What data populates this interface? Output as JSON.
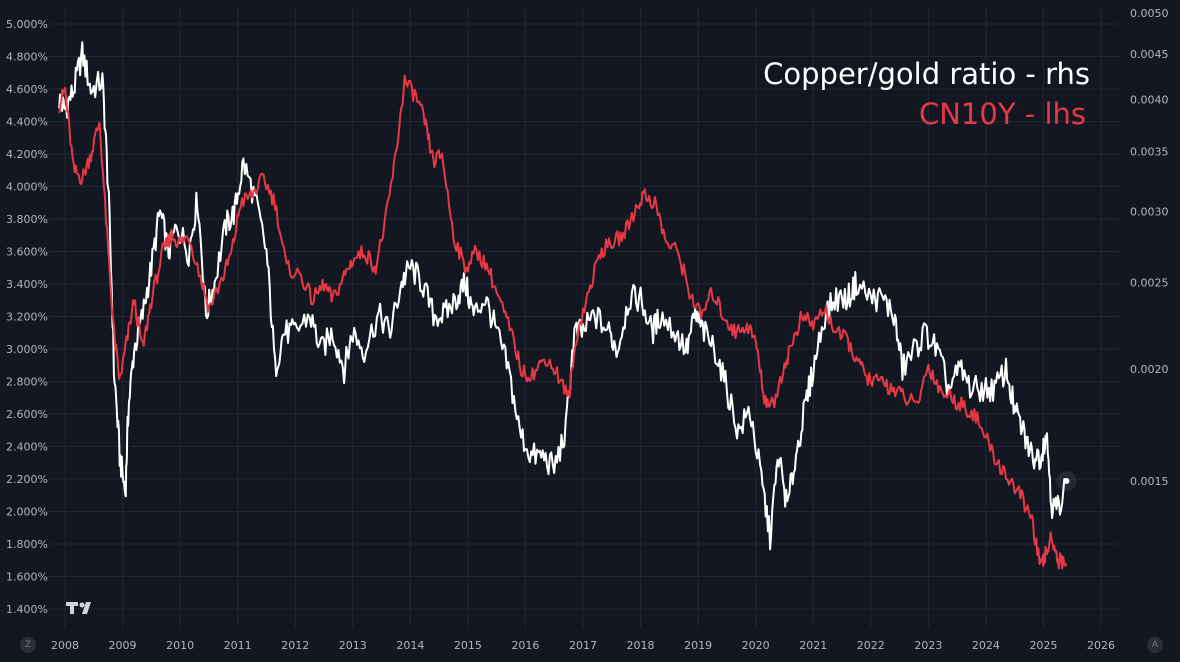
{
  "chart_data": {
    "type": "line",
    "title": "",
    "x_ticks": [
      "2008",
      "2009",
      "2010",
      "2011",
      "2012",
      "2013",
      "2014",
      "2015",
      "2016",
      "2017",
      "2018",
      "2019",
      "2020",
      "2021",
      "2022",
      "2023",
      "2024",
      "2025",
      "2026"
    ],
    "x_range": [
      2007.7,
      2026.3
    ],
    "left_axis": {
      "ticks": [
        "1.400%",
        "1.600%",
        "1.800%",
        "2.000%",
        "2.200%",
        "2.400%",
        "2.600%",
        "2.800%",
        "3.000%",
        "3.200%",
        "3.400%",
        "3.600%",
        "3.800%",
        "4.000%",
        "4.200%",
        "4.400%",
        "4.600%",
        "4.800%",
        "5.000%"
      ],
      "range": [
        1.4,
        5.0
      ],
      "unit": "%"
    },
    "right_axis": {
      "ticks": [
        "0.0015",
        "0.0020",
        "0.0025",
        "0.0030",
        "0.0035",
        "0.0040",
        "0.0045",
        "0.0050"
      ],
      "range": [
        0.001,
        0.005
      ],
      "scale": "log"
    },
    "grid": true,
    "legend_position": "top-right",
    "series": [
      {
        "name": "Copper/gold ratio - rhs",
        "axis": "right",
        "color": "#ffffff",
        "points": [
          [
            2007.9,
            0.004
          ],
          [
            2008.0,
            0.0039
          ],
          [
            2008.15,
            0.0041
          ],
          [
            2008.3,
            0.0045
          ],
          [
            2008.45,
            0.0041
          ],
          [
            2008.65,
            0.0042
          ],
          [
            2008.75,
            0.0032
          ],
          [
            2008.85,
            0.002
          ],
          [
            2008.95,
            0.0016
          ],
          [
            2009.05,
            0.00145
          ],
          [
            2009.1,
            0.0018
          ],
          [
            2009.2,
            0.0021
          ],
          [
            2009.35,
            0.0023
          ],
          [
            2009.5,
            0.0026
          ],
          [
            2009.65,
            0.003
          ],
          [
            2009.8,
            0.0027
          ],
          [
            2009.95,
            0.0029
          ],
          [
            2010.15,
            0.0027
          ],
          [
            2010.3,
            0.0031
          ],
          [
            2010.45,
            0.0023
          ],
          [
            2010.6,
            0.0025
          ],
          [
            2010.8,
            0.0029
          ],
          [
            2010.95,
            0.003
          ],
          [
            2011.1,
            0.0034
          ],
          [
            2011.3,
            0.0031
          ],
          [
            2011.5,
            0.0027
          ],
          [
            2011.65,
            0.002
          ],
          [
            2011.8,
            0.0022
          ],
          [
            2012.0,
            0.0022
          ],
          [
            2012.25,
            0.0023
          ],
          [
            2012.45,
            0.0021
          ],
          [
            2012.65,
            0.0022
          ],
          [
            2012.85,
            0.002
          ],
          [
            2013.0,
            0.0022
          ],
          [
            2013.2,
            0.0021
          ],
          [
            2013.45,
            0.0023
          ],
          [
            2013.65,
            0.0022
          ],
          [
            2013.85,
            0.0025
          ],
          [
            2014.0,
            0.0026
          ],
          [
            2014.2,
            0.0025
          ],
          [
            2014.4,
            0.0023
          ],
          [
            2014.6,
            0.0023
          ],
          [
            2014.8,
            0.0024
          ],
          [
            2014.95,
            0.0025
          ],
          [
            2015.1,
            0.0023
          ],
          [
            2015.3,
            0.0024
          ],
          [
            2015.5,
            0.0022
          ],
          [
            2015.7,
            0.002
          ],
          [
            2015.9,
            0.0017
          ],
          [
            2016.1,
            0.0016
          ],
          [
            2016.3,
            0.0016
          ],
          [
            2016.5,
            0.00155
          ],
          [
            2016.7,
            0.0017
          ],
          [
            2016.85,
            0.0022
          ],
          [
            2017.0,
            0.0022
          ],
          [
            2017.2,
            0.0023
          ],
          [
            2017.45,
            0.0022
          ],
          [
            2017.6,
            0.0021
          ],
          [
            2017.8,
            0.0024
          ],
          [
            2018.0,
            0.0024
          ],
          [
            2018.2,
            0.0022
          ],
          [
            2018.35,
            0.0023
          ],
          [
            2018.6,
            0.0022
          ],
          [
            2018.8,
            0.0021
          ],
          [
            2018.95,
            0.0023
          ],
          [
            2019.1,
            0.0022
          ],
          [
            2019.3,
            0.0021
          ],
          [
            2019.5,
            0.0019
          ],
          [
            2019.7,
            0.0017
          ],
          [
            2019.9,
            0.0018
          ],
          [
            2020.1,
            0.0015
          ],
          [
            2020.25,
            0.0013
          ],
          [
            2020.4,
            0.0016
          ],
          [
            2020.55,
            0.0014
          ],
          [
            2020.7,
            0.0016
          ],
          [
            2020.85,
            0.0018
          ],
          [
            2021.0,
            0.002
          ],
          [
            2021.2,
            0.0023
          ],
          [
            2021.4,
            0.0024
          ],
          [
            2021.6,
            0.0024
          ],
          [
            2021.75,
            0.0025
          ],
          [
            2022.0,
            0.0024
          ],
          [
            2022.2,
            0.0024
          ],
          [
            2022.4,
            0.0023
          ],
          [
            2022.55,
            0.002
          ],
          [
            2022.75,
            0.0021
          ],
          [
            2022.95,
            0.0022
          ],
          [
            2023.15,
            0.0021
          ],
          [
            2023.35,
            0.0019
          ],
          [
            2023.55,
            0.002
          ],
          [
            2023.75,
            0.0019
          ],
          [
            2023.95,
            0.0019
          ],
          [
            2024.15,
            0.0019
          ],
          [
            2024.35,
            0.002
          ],
          [
            2024.5,
            0.0018
          ],
          [
            2024.65,
            0.0017
          ],
          [
            2024.8,
            0.0016
          ],
          [
            2024.95,
            0.0016
          ],
          [
            2025.05,
            0.0017
          ],
          [
            2025.15,
            0.0014
          ],
          [
            2025.25,
            0.0014
          ],
          [
            2025.4,
            0.0015
          ]
        ]
      },
      {
        "name": "CN10Y - lhs",
        "axis": "left",
        "color": "#e63946",
        "points": [
          [
            2007.9,
            4.5
          ],
          [
            2008.0,
            4.6
          ],
          [
            2008.15,
            4.1
          ],
          [
            2008.3,
            4.05
          ],
          [
            2008.45,
            4.2
          ],
          [
            2008.6,
            4.4
          ],
          [
            2008.75,
            3.6
          ],
          [
            2008.85,
            3.1
          ],
          [
            2008.95,
            2.8
          ],
          [
            2009.05,
            3.0
          ],
          [
            2009.2,
            3.3
          ],
          [
            2009.35,
            3.0
          ],
          [
            2009.5,
            3.3
          ],
          [
            2009.7,
            3.6
          ],
          [
            2009.85,
            3.7
          ],
          [
            2010.0,
            3.65
          ],
          [
            2010.15,
            3.7
          ],
          [
            2010.35,
            3.45
          ],
          [
            2010.5,
            3.25
          ],
          [
            2010.75,
            3.45
          ],
          [
            2010.9,
            3.6
          ],
          [
            2011.05,
            3.9
          ],
          [
            2011.25,
            3.95
          ],
          [
            2011.45,
            4.05
          ],
          [
            2011.65,
            3.9
          ],
          [
            2011.85,
            3.5
          ],
          [
            2012.1,
            3.45
          ],
          [
            2012.3,
            3.3
          ],
          [
            2012.5,
            3.4
          ],
          [
            2012.65,
            3.3
          ],
          [
            2012.85,
            3.45
          ],
          [
            2013.0,
            3.55
          ],
          [
            2013.2,
            3.6
          ],
          [
            2013.4,
            3.5
          ],
          [
            2013.6,
            3.85
          ],
          [
            2013.75,
            4.2
          ],
          [
            2013.9,
            4.65
          ],
          [
            2014.1,
            4.55
          ],
          [
            2014.25,
            4.4
          ],
          [
            2014.4,
            4.15
          ],
          [
            2014.55,
            4.2
          ],
          [
            2014.75,
            3.7
          ],
          [
            2014.95,
            3.5
          ],
          [
            2015.15,
            3.6
          ],
          [
            2015.35,
            3.5
          ],
          [
            2015.55,
            3.3
          ],
          [
            2015.75,
            3.1
          ],
          [
            2015.95,
            2.85
          ],
          [
            2016.15,
            2.85
          ],
          [
            2016.35,
            2.95
          ],
          [
            2016.55,
            2.85
          ],
          [
            2016.75,
            2.7
          ],
          [
            2016.9,
            3.1
          ],
          [
            2017.1,
            3.35
          ],
          [
            2017.3,
            3.6
          ],
          [
            2017.5,
            3.65
          ],
          [
            2017.7,
            3.7
          ],
          [
            2017.9,
            3.85
          ],
          [
            2018.05,
            3.95
          ],
          [
            2018.25,
            3.9
          ],
          [
            2018.45,
            3.65
          ],
          [
            2018.65,
            3.6
          ],
          [
            2018.85,
            3.35
          ],
          [
            2019.05,
            3.2
          ],
          [
            2019.25,
            3.35
          ],
          [
            2019.45,
            3.2
          ],
          [
            2019.65,
            3.1
          ],
          [
            2019.85,
            3.15
          ],
          [
            2020.0,
            3.05
          ],
          [
            2020.15,
            2.7
          ],
          [
            2020.3,
            2.65
          ],
          [
            2020.5,
            2.9
          ],
          [
            2020.65,
            3.05
          ],
          [
            2020.8,
            3.2
          ],
          [
            2021.0,
            3.15
          ],
          [
            2021.2,
            3.25
          ],
          [
            2021.4,
            3.1
          ],
          [
            2021.6,
            3.05
          ],
          [
            2021.8,
            2.9
          ],
          [
            2022.0,
            2.8
          ],
          [
            2022.2,
            2.8
          ],
          [
            2022.4,
            2.75
          ],
          [
            2022.6,
            2.7
          ],
          [
            2022.8,
            2.65
          ],
          [
            2023.0,
            2.9
          ],
          [
            2023.2,
            2.75
          ],
          [
            2023.4,
            2.7
          ],
          [
            2023.6,
            2.65
          ],
          [
            2023.8,
            2.6
          ],
          [
            2024.0,
            2.45
          ],
          [
            2024.2,
            2.3
          ],
          [
            2024.4,
            2.2
          ],
          [
            2024.6,
            2.1
          ],
          [
            2024.8,
            1.95
          ],
          [
            2024.95,
            1.65
          ],
          [
            2025.05,
            1.75
          ],
          [
            2025.15,
            1.85
          ],
          [
            2025.25,
            1.7
          ],
          [
            2025.4,
            1.68
          ]
        ]
      }
    ]
  },
  "legend": {
    "rhs_label": "Copper/gold ratio - rhs",
    "lhs_label": "CN10Y - lhs"
  },
  "logo": {
    "icon": "tradingview-logo-icon",
    "text": "TV"
  },
  "corner_buttons": {
    "left": "Z",
    "right": "A"
  }
}
